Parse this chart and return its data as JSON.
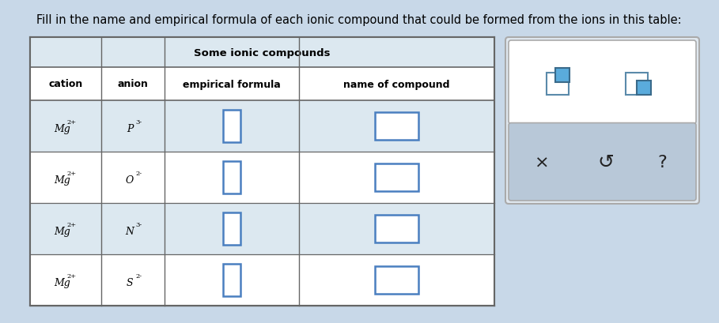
{
  "title_text": "Fill in the name and empirical formula of each ionic compound that could be formed from the ions in this table:",
  "table_title": "Some ionic compounds",
  "col_headers": [
    "cation",
    "anion",
    "empirical formula",
    "name of compound"
  ],
  "rows": [
    {
      "cation": "Mg",
      "cation_charge": "2+",
      "anion": "P",
      "anion_charge": "3-"
    },
    {
      "cation": "Mg",
      "cation_charge": "2+",
      "anion": "O",
      "anion_charge": "2-"
    },
    {
      "cation": "Mg",
      "cation_charge": "2+",
      "anion": "N",
      "anion_charge": "3-"
    },
    {
      "cation": "Mg",
      "cation_charge": "2+",
      "anion": "S",
      "anion_charge": "2-"
    }
  ],
  "bg_color": "#c8d8e8",
  "table_bg_light": "#dce8f0",
  "table_bg_white": "#ffffff",
  "cell_border_color": "#666666",
  "input_box_color": "#4a7fc0",
  "title_font_size": 10.5,
  "table_title_font_size": 9.5,
  "side_panel_bg_top": "#ffffff",
  "side_panel_bg_bot": "#b8c8d8",
  "side_panel_border": "#999999",
  "icon1_color_large": "#ffffff",
  "icon1_color_small": "#5aabdc",
  "icon2_color_large": "#ffffff",
  "icon2_color_small": "#5aabdc",
  "icon_border": "#5a8aaa"
}
